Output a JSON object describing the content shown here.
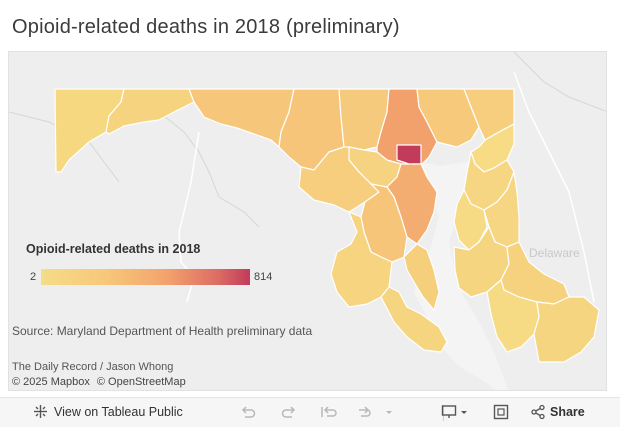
{
  "title": "Opioid-related deaths in 2018 (preliminary)",
  "legend": {
    "title": "Opioid-related deaths in 2018",
    "min": "2",
    "max": "814",
    "color_low": "#f5dc87",
    "color_mid": "#f3a36d",
    "color_high": "#c23b5b"
  },
  "source": "Source: Maryland Department of Health preliminary data",
  "credit": "The Daily Record / Jason Whong",
  "attribution": {
    "mapbox": "© 2025 Mapbox",
    "osm": "© OpenStreetMap"
  },
  "map": {
    "neighbor_label": "Delaware",
    "counties": [
      {
        "name": "Garrett",
        "color": "#f6d880"
      },
      {
        "name": "Allegany",
        "color": "#f6d47f"
      },
      {
        "name": "Washington",
        "color": "#f6c77a"
      },
      {
        "name": "Frederick",
        "color": "#f6c57a"
      },
      {
        "name": "Carroll",
        "color": "#f6ca7c"
      },
      {
        "name": "Baltimore County",
        "color": "#f2a06c"
      },
      {
        "name": "Baltimore City",
        "color": "#c23b5b"
      },
      {
        "name": "Harford",
        "color": "#f6c97b"
      },
      {
        "name": "Cecil",
        "color": "#f6ce7d"
      },
      {
        "name": "Howard",
        "color": "#f6d380"
      },
      {
        "name": "Montgomery",
        "color": "#f6ce7e"
      },
      {
        "name": "Anne Arundel",
        "color": "#f4ad70"
      },
      {
        "name": "Prince George's",
        "color": "#f6c57a"
      },
      {
        "name": "Charles",
        "color": "#f6d480"
      },
      {
        "name": "Calvert",
        "color": "#f6cf7d"
      },
      {
        "name": "St. Mary's",
        "color": "#f6d580"
      },
      {
        "name": "Kent",
        "color": "#f7dc85"
      },
      {
        "name": "Queen Anne's",
        "color": "#f6d682"
      },
      {
        "name": "Talbot",
        "color": "#f7da84"
      },
      {
        "name": "Caroline",
        "color": "#f6d682"
      },
      {
        "name": "Dorchester",
        "color": "#f6d581"
      },
      {
        "name": "Wicomico",
        "color": "#f6d17e"
      },
      {
        "name": "Somerset",
        "color": "#f7db84"
      },
      {
        "name": "Worcester",
        "color": "#f6d581"
      }
    ]
  },
  "toolbar": {
    "view_label": "View on Tableau Public",
    "share_label": "Share"
  }
}
